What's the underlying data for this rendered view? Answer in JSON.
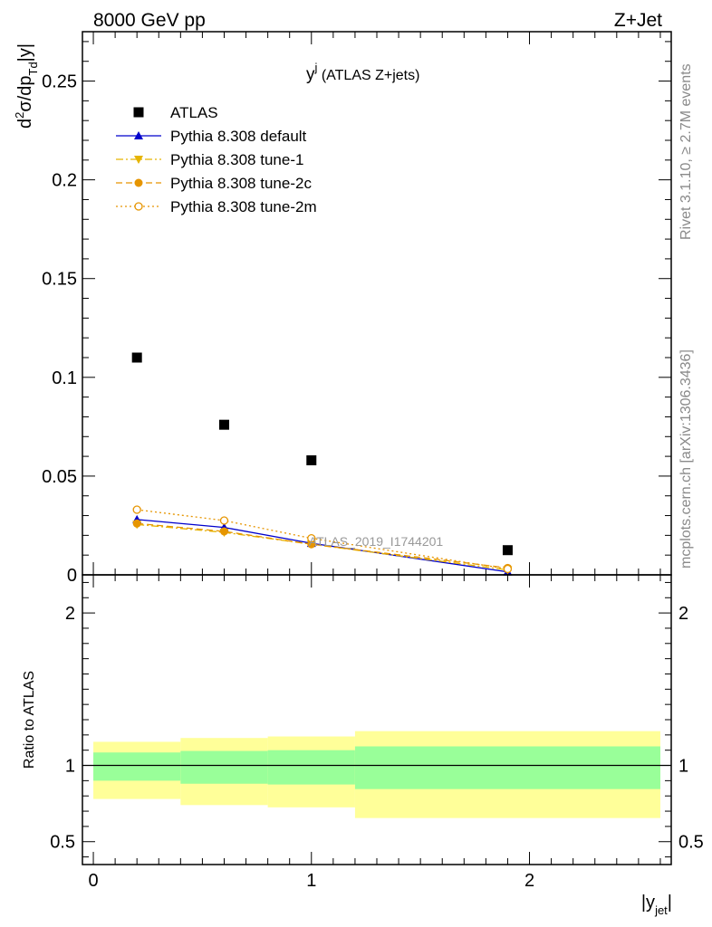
{
  "header": {
    "left": "8000 GeV pp",
    "right": "Z+Jet"
  },
  "side_labels": {
    "rivet": "Rivet 3.1.10, ≥ 2.7M events",
    "mcplots": "mcplots.cern.ch [arXiv:1306.3436]"
  },
  "chart_data": {
    "type": "scatter",
    "title_main": "y",
    "title_sup": "j",
    "title_rest": " (ATLAS Z+jets)",
    "watermark": "ATLAS_2019_I1744201",
    "xlabel": {
      "pre": "|y",
      "sub": "jet",
      "post": "|"
    },
    "ylabel": {
      "part1": "d",
      "sup": "2",
      "part2": "σ/dp",
      "sub": "Td",
      "part3": "|y|"
    },
    "xlim": [
      -0.05,
      2.65
    ],
    "ylim": [
      0,
      0.275
    ],
    "x_ticks": [
      0,
      1,
      2
    ],
    "y_ticks": [
      0,
      0.05,
      0.1,
      0.15,
      0.2,
      0.25
    ],
    "y_tick_labels": [
      "0",
      "0.05",
      "0.1",
      "0.15",
      "0.2",
      "0.25"
    ],
    "legend_position": "top-left",
    "series": [
      {
        "name": "ATLAS",
        "color": "#000000",
        "marker": "square",
        "line": "none",
        "x": [
          0.2,
          0.6,
          1.0,
          1.9
        ],
        "y": [
          0.11,
          0.076,
          0.058,
          0.0125
        ]
      },
      {
        "name": "Pythia 8.308 default",
        "color": "#0000cc",
        "marker": "triangle-up",
        "line": "solid",
        "x": [
          0.2,
          0.6,
          1.0,
          1.9
        ],
        "y": [
          0.028,
          0.024,
          0.016,
          0.0015
        ]
      },
      {
        "name": "Pythia 8.308 tune-1",
        "color": "#e6b400",
        "marker": "triangle-down",
        "line": "dashdot",
        "x": [
          0.2,
          0.6,
          1.0,
          1.9
        ],
        "y": [
          0.0255,
          0.0215,
          0.0155,
          0.0025
        ]
      },
      {
        "name": "Pythia 8.308 tune-2c",
        "color": "#e69500",
        "marker": "circle",
        "line": "dashed",
        "x": [
          0.2,
          0.6,
          1.0,
          1.9
        ],
        "y": [
          0.026,
          0.022,
          0.0155,
          0.0035
        ]
      },
      {
        "name": "Pythia 8.308 tune-2m",
        "color": "#e69500",
        "marker": "open-circle",
        "line": "dotted",
        "x": [
          0.2,
          0.6,
          1.0,
          1.9
        ],
        "y": [
          0.033,
          0.0275,
          0.0185,
          0.003
        ]
      }
    ],
    "ratio": {
      "ylabel": "Ratio to ATLAS",
      "ylim": [
        0.35,
        2.25
      ],
      "y_ticks": [
        0.5,
        1,
        2
      ],
      "y_tick_labels": [
        "0.5",
        "1",
        "2"
      ],
      "reference": 1,
      "bands": [
        {
          "x0": 0.0,
          "x1": 0.4,
          "inner": [
            0.9,
            1.085
          ],
          "outer": [
            0.78,
            1.155
          ]
        },
        {
          "x0": 0.4,
          "x1": 0.8,
          "inner": [
            0.88,
            1.095
          ],
          "outer": [
            0.74,
            1.18
          ]
        },
        {
          "x0": 0.8,
          "x1": 1.2,
          "inner": [
            0.875,
            1.1
          ],
          "outer": [
            0.725,
            1.19
          ]
        },
        {
          "x0": 1.2,
          "x1": 2.6,
          "inner": [
            0.845,
            1.125
          ],
          "outer": [
            0.655,
            1.225
          ]
        }
      ],
      "band_colors": {
        "inner": "#99ff99",
        "outer": "#ffff99"
      }
    }
  }
}
